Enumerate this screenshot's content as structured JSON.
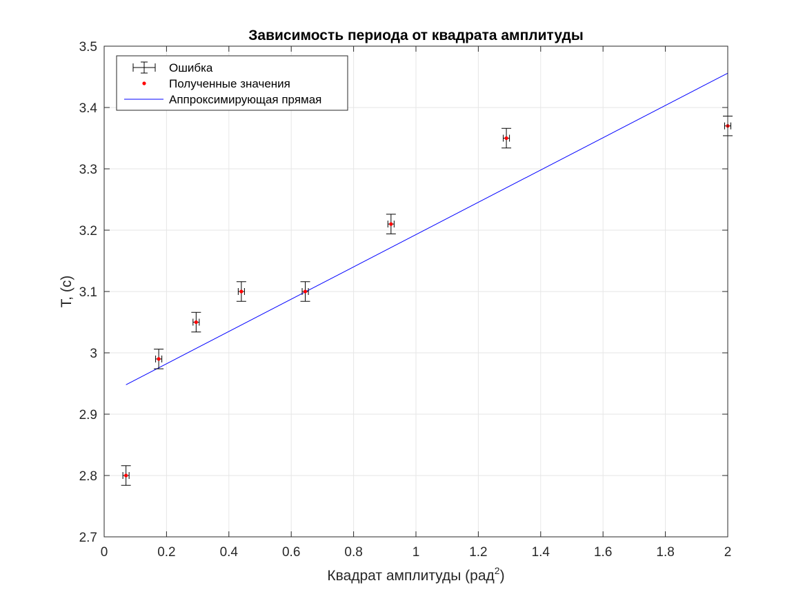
{
  "chart_data": {
    "type": "scatter",
    "title": "Зависимость периода от квадрата амплитуды",
    "xlabel": "Квадрат амплитуды (рад",
    "xlabel_superscript": "2",
    "xlabel_suffix": ")",
    "ylabel": "T, (c)",
    "xlim": [
      0,
      2
    ],
    "ylim": [
      2.7,
      3.5
    ],
    "x_ticks": [
      0,
      0.2,
      0.4,
      0.6,
      0.8,
      1,
      1.2,
      1.4,
      1.6,
      1.8,
      2
    ],
    "x_tick_labels": [
      "0",
      "0.2",
      "0.4",
      "0.6",
      "0.8",
      "1",
      "1.2",
      "1.4",
      "1.6",
      "1.8",
      "2"
    ],
    "y_ticks": [
      2.7,
      2.8,
      2.9,
      3.0,
      3.1,
      3.2,
      3.3,
      3.4,
      3.5
    ],
    "y_tick_labels": [
      "2.7",
      "2.8",
      "2.9",
      "3",
      "3.1",
      "3.2",
      "3.3",
      "3.4",
      "3.5"
    ],
    "grid": true,
    "legend_position": "top-left",
    "series": [
      {
        "name": "Ошибка",
        "kind": "errorbar",
        "color": "#000000",
        "x": [
          0.07,
          0.175,
          0.295,
          0.44,
          0.645,
          0.92,
          1.29,
          2.0
        ],
        "y": [
          2.8,
          2.99,
          3.05,
          3.1,
          3.1,
          3.21,
          3.35,
          3.37
        ],
        "y_error": [
          0.016,
          0.016,
          0.016,
          0.016,
          0.016,
          0.016,
          0.016,
          0.016
        ],
        "x_error": [
          0.01,
          0.01,
          0.01,
          0.01,
          0.01,
          0.01,
          0.01,
          0.01
        ]
      },
      {
        "name": "Полученные значения",
        "kind": "points",
        "color": "#ff0000",
        "x": [
          0.07,
          0.175,
          0.295,
          0.44,
          0.645,
          0.92,
          1.29,
          2.0
        ],
        "y": [
          2.8,
          2.99,
          3.05,
          3.1,
          3.1,
          3.21,
          3.35,
          3.37
        ]
      },
      {
        "name": "Аппроксимирующая прямая",
        "kind": "line",
        "color": "#0000ff",
        "x": [
          0.07,
          2.0
        ],
        "y": [
          2.948,
          3.456
        ]
      }
    ]
  }
}
